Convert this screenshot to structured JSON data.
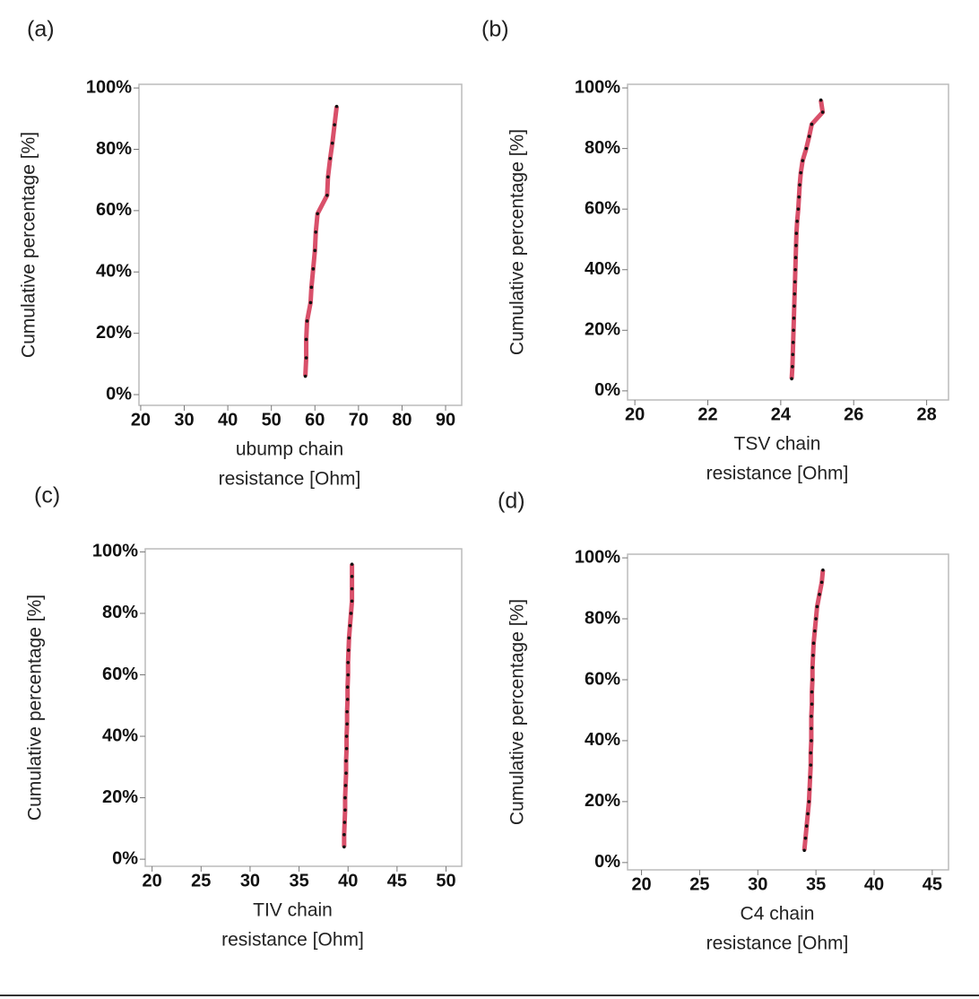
{
  "chart_data": [
    {
      "type": "line",
      "panel": "(a)",
      "ylabel": "Cumulative percentage [%]",
      "xlabel": [
        "ubump chain",
        "resistance [Ohm]"
      ],
      "color": "#d9506a",
      "marker_color": "#111111",
      "x": [
        57.8,
        58,
        58,
        58.2,
        59,
        59.2,
        59.6,
        60,
        60.2,
        60.6,
        62.8,
        63,
        63.5,
        64,
        64.5,
        65
      ],
      "values": [
        6,
        12,
        18,
        24,
        30,
        35,
        41,
        47,
        53,
        59,
        65,
        71,
        77,
        82,
        88,
        94
      ],
      "xlim": [
        19.6,
        93.7
      ],
      "xticks": [
        20,
        30,
        40,
        50,
        60,
        70,
        80,
        90
      ],
      "ylim": [
        -3.5,
        101.2
      ],
      "yticks": [
        {
          "value": 0,
          "label": "0%"
        },
        {
          "value": 20,
          "label": "20%"
        },
        {
          "value": 40,
          "label": "40%"
        },
        {
          "value": 60,
          "label": "60%"
        },
        {
          "value": 80,
          "label": "80%"
        },
        {
          "value": 100,
          "label": "100%"
        }
      ]
    },
    {
      "type": "line",
      "panel": "(b)",
      "ylabel": "Cumulative percentage [%]",
      "xlabel": [
        "TSV chain",
        "resistance [Ohm]"
      ],
      "color": "#d9506a",
      "marker_color": "#111111",
      "x": [
        24.3,
        24.32,
        24.33,
        24.34,
        24.35,
        24.36,
        24.37,
        24.38,
        24.39,
        24.4,
        24.41,
        24.42,
        24.43,
        24.45,
        24.48,
        24.5,
        24.52,
        24.55,
        24.6,
        24.7,
        24.78,
        24.85,
        25.15,
        25.1
      ],
      "values": [
        4,
        8,
        12,
        16,
        20,
        24,
        28,
        32,
        36,
        40,
        44,
        48,
        52,
        56,
        60,
        64,
        68,
        72,
        76,
        80,
        84,
        88,
        92,
        96
      ],
      "xlim": [
        19.8,
        28.6
      ],
      "xticks": [
        20,
        22,
        24,
        26,
        28
      ],
      "ylim": [
        -3,
        101.2
      ],
      "yticks": [
        {
          "value": 0,
          "label": "0%"
        },
        {
          "value": 20,
          "label": "20%"
        },
        {
          "value": 40,
          "label": "40%"
        },
        {
          "value": 60,
          "label": "60%"
        },
        {
          "value": 80,
          "label": "80%"
        },
        {
          "value": 100,
          "label": "100%"
        }
      ]
    },
    {
      "type": "line",
      "panel": "(c)",
      "ylabel": "Cumulative percentage [%]",
      "xlabel": [
        "TIV chain",
        "resistance [Ohm]"
      ],
      "color": "#d9506a",
      "marker_color": "#111111",
      "x": [
        39.6,
        39.6,
        39.65,
        39.7,
        39.7,
        39.75,
        39.8,
        39.8,
        39.85,
        39.85,
        39.9,
        39.9,
        39.95,
        39.95,
        40,
        40,
        40.05,
        40.1,
        40.2,
        40.3,
        40.4,
        40.4,
        40.4,
        40.4
      ],
      "values": [
        4,
        8,
        12,
        16,
        20,
        24,
        28,
        32,
        36,
        40,
        44,
        48,
        52,
        56,
        60,
        64,
        68,
        72,
        76,
        80,
        84,
        88,
        92,
        96
      ],
      "xlim": [
        19.3,
        51.6
      ],
      "xticks": [
        20,
        25,
        30,
        35,
        40,
        45,
        50
      ],
      "ylim": [
        -2.3,
        101
      ],
      "yticks": [
        {
          "value": 0,
          "label": "0%"
        },
        {
          "value": 20,
          "label": "20%"
        },
        {
          "value": 40,
          "label": "40%"
        },
        {
          "value": 60,
          "label": "60%"
        },
        {
          "value": 80,
          "label": "80%"
        },
        {
          "value": 100,
          "label": "100%"
        }
      ]
    },
    {
      "type": "line",
      "panel": "(d)",
      "ylabel": "Cumulative percentage [%]",
      "xlabel": [
        "C4 chain",
        "resistance [Ohm]"
      ],
      "color": "#d9506a",
      "marker_color": "#111111",
      "x": [
        34,
        34.1,
        34.2,
        34.3,
        34.4,
        34.45,
        34.5,
        34.55,
        34.55,
        34.6,
        34.6,
        34.6,
        34.65,
        34.65,
        34.7,
        34.7,
        34.75,
        34.8,
        34.9,
        35,
        35.1,
        35.3,
        35.5,
        35.6
      ],
      "values": [
        4,
        8,
        12,
        16,
        20,
        24,
        28,
        32,
        36,
        40,
        44,
        48,
        52,
        56,
        60,
        64,
        68,
        72,
        76,
        80,
        84,
        88,
        92,
        96
      ],
      "xlim": [
        18.8,
        46.4
      ],
      "xticks": [
        20,
        25,
        30,
        35,
        40,
        45
      ],
      "ylim": [
        -2.4,
        101.2
      ],
      "yticks": [
        {
          "value": 0,
          "label": "0%"
        },
        {
          "value": 20,
          "label": "20%"
        },
        {
          "value": 40,
          "label": "40%"
        },
        {
          "value": 60,
          "label": "60%"
        },
        {
          "value": 80,
          "label": "80%"
        },
        {
          "value": 100,
          "label": "100%"
        }
      ]
    }
  ]
}
